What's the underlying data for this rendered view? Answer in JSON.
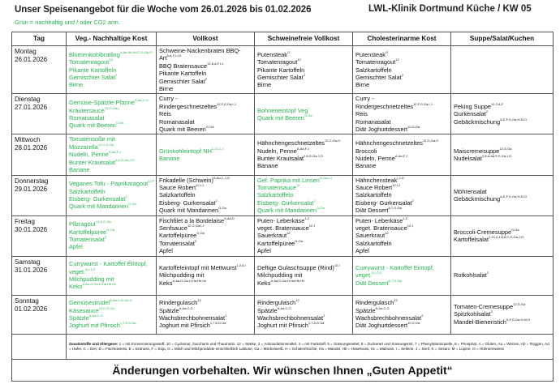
{
  "header": {
    "title": "Unser Speisenangebot für die Woche vom 26.01.2026 bis 01.02.2026",
    "location": "LWL-Klinik Dortmund Küche / KW 05",
    "legend": "Grün = nachhaltig und / oder CO2 arm."
  },
  "colors": {
    "green": "#22b24c",
    "text": "#111111",
    "border": "#555555"
  },
  "columns": [
    "Tag",
    "Veg.- Nachhaltige Kost",
    "Vollkost",
    "Schweinefreie Vollkost",
    "Cholesterinarme Kost",
    "Suppe/Salat/Kuchen"
  ],
  "days": [
    {
      "day": "Montag",
      "date": "26.01.2026",
      "cells": [
        {
          "green": true,
          "items": [
            [
              "Blumenkohlbratling",
              "A,Aa,Ab,Ad,C,G,Ga,O"
            ],
            [
              "Tomatenragout",
              "12"
            ],
            [
              "Pikante Kartoffeln",
              ""
            ],
            [
              "Gemischter Salat",
              "2"
            ],
            [
              "Birne",
              ""
            ]
          ]
        },
        {
          "green": false,
          "items": [
            [
              "Schweine-Nackenbraten BBQ-",
              ""
            ],
            [
              "Art",
              "8,A,F,I,J,K"
            ],
            [
              "BBQ Bratensauce",
              "12,8,A,F,I,J"
            ],
            [
              "Pikante Kartoffeln",
              ""
            ],
            [
              "Gemischter Salat",
              "2"
            ],
            [
              "Birne",
              ""
            ]
          ]
        },
        {
          "green": false,
          "items": [
            [
              "Putensteak",
              "O"
            ],
            [
              "Tomatenragout",
              "12"
            ],
            [
              "Pikante Kartoffeln",
              ""
            ],
            [
              "Gemischter Salat",
              "2"
            ],
            [
              "Birne",
              ""
            ]
          ]
        },
        {
          "green": false,
          "items": [
            [
              "Putensteak",
              "O"
            ],
            [
              "Tomatenragout",
              "12"
            ],
            [
              "Salzkartoffeln",
              ""
            ],
            [
              "Gemischter Salat",
              "2"
            ],
            [
              "Birne",
              ""
            ]
          ]
        },
        {
          "green": false,
          "items": []
        }
      ]
    },
    {
      "day": "Dienstag",
      "date": "27.01.2026",
      "cells": [
        {
          "green": true,
          "items": [
            [
              "Gemüse-Spätzle-Pfanne",
              "A,Aa,C,O"
            ],
            [
              "Kräutersauce",
              "12,G,Ga,I"
            ],
            [
              "Romanasalat",
              ""
            ],
            [
              "Quark mit Beeren",
              "G,Ga"
            ]
          ]
        },
        {
          "green": false,
          "items": [
            [
              "Curry -",
              ""
            ],
            [
              "Rindergeschnetzeltes",
              "12,F,G,Ga,I,J"
            ],
            [
              "Reis",
              ""
            ],
            [
              "Romanasalat",
              ""
            ],
            [
              "Quark mit Beeren",
              "G,Ga"
            ]
          ]
        },
        {
          "green": true,
          "items": [
            [
              "Bohneneintopf Veg",
              "I"
            ],
            [
              "Quark mit Beeren",
              "G,Ga"
            ]
          ]
        },
        {
          "green": false,
          "items": [
            [
              "Curry -",
              ""
            ],
            [
              "Rindergeschnetzeltes",
              "12,F,G,Ga,I,J"
            ],
            [
              "Reis",
              ""
            ],
            [
              "Romanasalat",
              ""
            ],
            [
              "Diät Joghurtdessert",
              "10,G,Ga"
            ]
          ]
        },
        {
          "green": false,
          "items": [
            [
              "Peking Suppe",
              "12,2,A,F"
            ],
            [
              "Gurkensalat",
              "2"
            ],
            [
              "Gebäckmischung",
              "A,E,F,G,Ga,H,M,O"
            ]
          ]
        }
      ]
    },
    {
      "day": "Mittwoch",
      "date": "28.01.2026",
      "cells": [
        {
          "green": true,
          "items": [
            [
              "Tomatensoße mit",
              ""
            ],
            [
              "Mozzarella",
              "12,C,G,Ga"
            ],
            [
              "Nudeln, Penne",
              "A,Aa,F,J"
            ],
            [
              "Bunter Krautsalat",
              "2,8,G,Ga,J,O"
            ],
            [
              "Banane",
              ""
            ]
          ]
        },
        {
          "green": true,
          "items": [
            [
              "Grünkohleintopf NH",
              "1,12,2,J"
            ],
            [
              "Banane",
              ""
            ]
          ]
        },
        {
          "green": false,
          "items": [
            [
              "Hähnchengeschnetzeltes",
              "12,G,Ga,O"
            ],
            [
              "Nudeln, Penne",
              "A,Aa,F,J"
            ],
            [
              "Bunter Krautsalat",
              "2,8,G,Ga,J,O"
            ],
            [
              "Banane",
              ""
            ]
          ]
        },
        {
          "green": false,
          "items": [
            [
              "Hähnchengeschnetzeltes",
              "12,G,Ga,O"
            ],
            [
              "Broccoli",
              ""
            ],
            [
              "Nudeln, Penne",
              "A,Aa,F,J"
            ],
            [
              "Banane",
              ""
            ]
          ]
        },
        {
          "green": false,
          "items": [
            [
              "Maiscremesuppe",
              "12,G,Ga"
            ],
            [
              "Nudelsalat",
              "2,8,A,Aa,F,G,Ga,J,O"
            ]
          ]
        }
      ]
    },
    {
      "day": "Donnerstag",
      "date": "29.01.2026",
      "cells": [
        {
          "green": true,
          "items": [
            [
              "Veganes Tofu - Paprikaragout",
              "12,F"
            ],
            [
              "Salzkartoffeln",
              ""
            ],
            [
              "Eisberg- Gurkensalat",
              "2"
            ],
            [
              "Quark mit Mandarinen",
              "G,Ga"
            ]
          ]
        },
        {
          "green": false,
          "items": [
            [
              "Frikadelle (Schwein)",
              "A,Aa,C,J,O"
            ],
            [
              "Sauce Robert",
              "12,I,J"
            ],
            [
              "Salzkartoffeln",
              ""
            ],
            [
              "Eisberg- Gurkensalat",
              "2"
            ],
            [
              "Quark mit Mandarinen",
              "G,Ga"
            ]
          ]
        },
        {
          "green": true,
          "items": [
            [
              "Gef. Paprika mit Linsen",
              "G,Ga,I,J"
            ],
            [
              "Tomatensauce",
              "12"
            ],
            [
              "Salzkartoffeln",
              ""
            ],
            [
              "Eisberg- Gurkensalat",
              "2"
            ],
            [
              "Quark mit Mandarinen",
              "G,Ga"
            ]
          ]
        },
        {
          "green": false,
          "items": [
            [
              "Hähnchensteak",
              "I,J,O"
            ],
            [
              "Sauce Robert",
              "12,I,J"
            ],
            [
              "Salzkartoffeln",
              ""
            ],
            [
              "Eisberg- Gurkensalat",
              "2"
            ],
            [
              "Diät Dessert",
              "6,7,G,Ga"
            ]
          ]
        },
        {
          "green": false,
          "items": [
            [
              "Möhrensalat",
              ""
            ],
            [
              "Gebäckmischung",
              "A,E,F,G,Ga,H,M,O"
            ]
          ]
        }
      ]
    },
    {
      "day": "Freitag",
      "date": "30.01.2026",
      "cells": [
        {
          "green": true,
          "items": [
            [
              "Pilzragout",
              "12,A,G,Ga"
            ],
            [
              "Kartoffelpüree",
              "G,Ga"
            ],
            [
              "Tomatensalat",
              "2"
            ],
            [
              "Apfel",
              ""
            ]
          ]
        },
        {
          "green": false,
          "items": [
            [
              "Fischfilet a la Bordelaise",
              "A,Aa,D"
            ],
            [
              "Senfsauce",
              "12,G,Ga,I,J"
            ],
            [
              "Kartoffelpüree",
              "G,Ga"
            ],
            [
              "Tomatensalat",
              "2"
            ],
            [
              "Apfel",
              ""
            ]
          ]
        },
        {
          "green": false,
          "items": [
            [
              "Puten- Leberkäse",
              "1,2"
            ],
            [
              "veget. Bratensauce",
              "12,J"
            ],
            [
              "Sauerkraut",
              "12"
            ],
            [
              "Kartoffelpüree",
              "G,Ga"
            ],
            [
              "Apfel",
              ""
            ]
          ]
        },
        {
          "green": false,
          "items": [
            [
              "Puten- Leberkäse",
              "1,2"
            ],
            [
              "veget. Bratensauce",
              "12,J"
            ],
            [
              "Sauerkraut",
              "12"
            ],
            [
              "Salzkartoffeln",
              ""
            ],
            [
              "Apfel",
              ""
            ]
          ]
        },
        {
          "green": false,
          "items": [
            [
              "Broccoli-Cremesuppe",
              "G,Ga"
            ],
            [
              "Kartoffelsalat",
              "1,10,2,4,5,8,C,G,Ga,J,O"
            ]
          ]
        }
      ]
    },
    {
      "day": "Samstag",
      "date": "31.01.2026",
      "cells": [
        {
          "green": true,
          "items": [
            [
              "Currywurst - Kartoffel Eintopf,",
              ""
            ],
            [
              "veget.",
              "A,I,J,O"
            ],
            [
              "Milchpudding mit",
              ""
            ],
            [
              "Keks",
              "A,Aa,G,Ga,H,Ha,Hb,Hc"
            ]
          ]
        },
        {
          "green": false,
          "items": [
            [
              "Kartoffeleintopf mit Mettwurst",
              "1,2,8,I"
            ],
            [
              "Milchpudding mit",
              ""
            ],
            [
              "Keks",
              "A,Aa,G,Ga,H,Ha,Hb,Hc"
            ]
          ]
        },
        {
          "green": false,
          "items": [
            [
              "Deftige Gulaschsuppe (Rind)",
              "12,I"
            ],
            [
              "Milchpudding mit",
              ""
            ],
            [
              "Keks",
              "A,Aa,G,Ga,H,Ha,Hb,Hc"
            ]
          ]
        },
        {
          "green": true,
          "items": [
            [
              "Currywurst - Kartoffel Eintopf,",
              ""
            ],
            [
              "veget.",
              "A,I,J,O"
            ],
            [
              "Diät Dessert",
              "6,7,G,Ga"
            ]
          ]
        },
        {
          "green": false,
          "items": [
            [
              "Rotkohlsalat",
              "2"
            ]
          ]
        }
      ]
    },
    {
      "day": "Sonntag",
      "date": "01.02.2026",
      "cells": [
        {
          "green": true,
          "items": [
            [
              "Gemüsestrudel",
              "A,Aa,C,G,Ga,O"
            ],
            [
              "Käsesauce",
              "12,C,G,Ga"
            ],
            [
              "Spätzle",
              "A,Aa,C,O"
            ],
            [
              "Joghurt mit Pfirsich",
              "1,7,8,G,Ga"
            ]
          ]
        },
        {
          "green": false,
          "items": [
            [
              "Rindergulasch",
              "12"
            ],
            [
              "Spätzle",
              "A,Aa,C,O"
            ],
            [
              "Wachsbrechbohnensalat",
              "2"
            ],
            [
              "Joghurt mit Pfirsich",
              "1,7,8,G,Ga"
            ]
          ]
        },
        {
          "green": false,
          "items": [
            [
              "Rindergulasch",
              "12"
            ],
            [
              "Spätzle",
              "A,Aa,C,O"
            ],
            [
              "Wachsbrechbohnensalat",
              "2"
            ],
            [
              "Joghurt mit Pfirsich",
              "1,7,8,G,Ga"
            ]
          ]
        },
        {
          "green": false,
          "items": [
            [
              "Rindergulasch",
              "12"
            ],
            [
              "Spätzle",
              "A,Aa,C,O"
            ],
            [
              "Wachsbrechbohnensalat",
              "2"
            ],
            [
              "Diät Joghurtdessert",
              "10,G,Ga"
            ]
          ]
        },
        {
          "green": false,
          "items": [
            [
              "Tomaten-Cremesuppe",
              "12,G,Ga"
            ],
            [
              "Spitzkohlsalat",
              "2"
            ],
            [
              "Mandel-Bienenstich",
              "A,F,G,Ga,H,M,O"
            ]
          ]
        }
      ]
    }
  ],
  "footer": {
    "allergens_label": "Zusatzstoffe und Allergene:",
    "allergens_text": " 1 = mit Konservierungsstoff, 10 = Cyclamat, Saccharin und Thaumatin, 12 = Stärke, 2 = Antioxidationsmittel, 4 = mit Farbstoff, 5 = Süssungsmittel, 6 = Zuckerart und Süssungsmit, 7 = Phenylalaninquelle, 8 = Phosphat, A = Gluten, Aa = Weizen, Ab = Roggen, Ad = Hafer, C = Eier, D = Fischeiweiss, E = Erdnuss, F = Soja, G = Milch und Milchprodukte einschließlich Laktose, Ga = Milcheiweiß, H = Schalenfrüchte, Ha = Mandel, Hb = Haselnuss, Hc = Walnuss, I = Sellerie, J = Senf, K = Sesam, M = Lupine, O = Hühnereiweiss",
    "closing": "Änderungen vorbehalten. Wir wünschen Ihnen „Guten Appetit“"
  }
}
